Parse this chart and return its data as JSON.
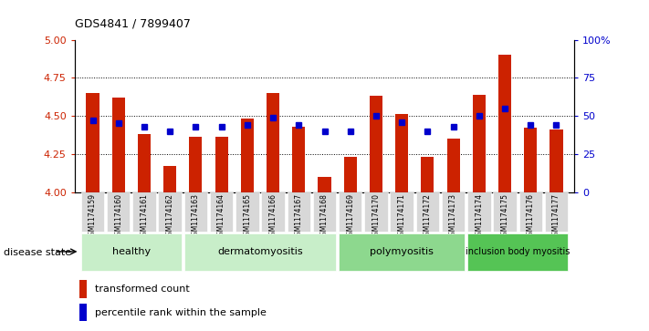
{
  "title": "GDS4841 / 7899407",
  "samples": [
    "GSM1174159",
    "GSM1174160",
    "GSM1174161",
    "GSM1174162",
    "GSM1174163",
    "GSM1174164",
    "GSM1174165",
    "GSM1174166",
    "GSM1174167",
    "GSM1174168",
    "GSM1174169",
    "GSM1174170",
    "GSM1174171",
    "GSM1174172",
    "GSM1174173",
    "GSM1174174",
    "GSM1174175",
    "GSM1174176",
    "GSM1174177"
  ],
  "bar_values": [
    4.65,
    4.62,
    4.38,
    4.17,
    4.36,
    4.36,
    4.48,
    4.65,
    4.43,
    4.1,
    4.23,
    4.63,
    4.51,
    4.23,
    4.35,
    4.64,
    4.9,
    4.42,
    4.41
  ],
  "dot_values": [
    47,
    45,
    43,
    40,
    43,
    43,
    44,
    49,
    44,
    40,
    40,
    50,
    46,
    40,
    43,
    50,
    55,
    44,
    44
  ],
  "groups": [
    {
      "label": "healthy",
      "start": 0,
      "end": 3,
      "color": "#c8eec9"
    },
    {
      "label": "dermatomyositis",
      "start": 4,
      "end": 9,
      "color": "#c8eec9"
    },
    {
      "label": "polymyositis",
      "start": 10,
      "end": 14,
      "color": "#8dd88e"
    },
    {
      "label": "inclusion body myositis",
      "start": 15,
      "end": 18,
      "color": "#55c455"
    }
  ],
  "bar_color": "#cc2200",
  "dot_color": "#0000cc",
  "ylim_left": [
    4.0,
    5.0
  ],
  "ylim_right": [
    0,
    100
  ],
  "yticks_left": [
    4.0,
    4.25,
    4.5,
    4.75,
    5.0
  ],
  "yticks_right": [
    0,
    25,
    50,
    75,
    100
  ],
  "hline_values": [
    4.25,
    4.5,
    4.75
  ],
  "legend_bar_label": "transformed count",
  "legend_dot_label": "percentile rank within the sample",
  "tick_color_left": "#cc2200",
  "tick_color_right": "#0000cc"
}
